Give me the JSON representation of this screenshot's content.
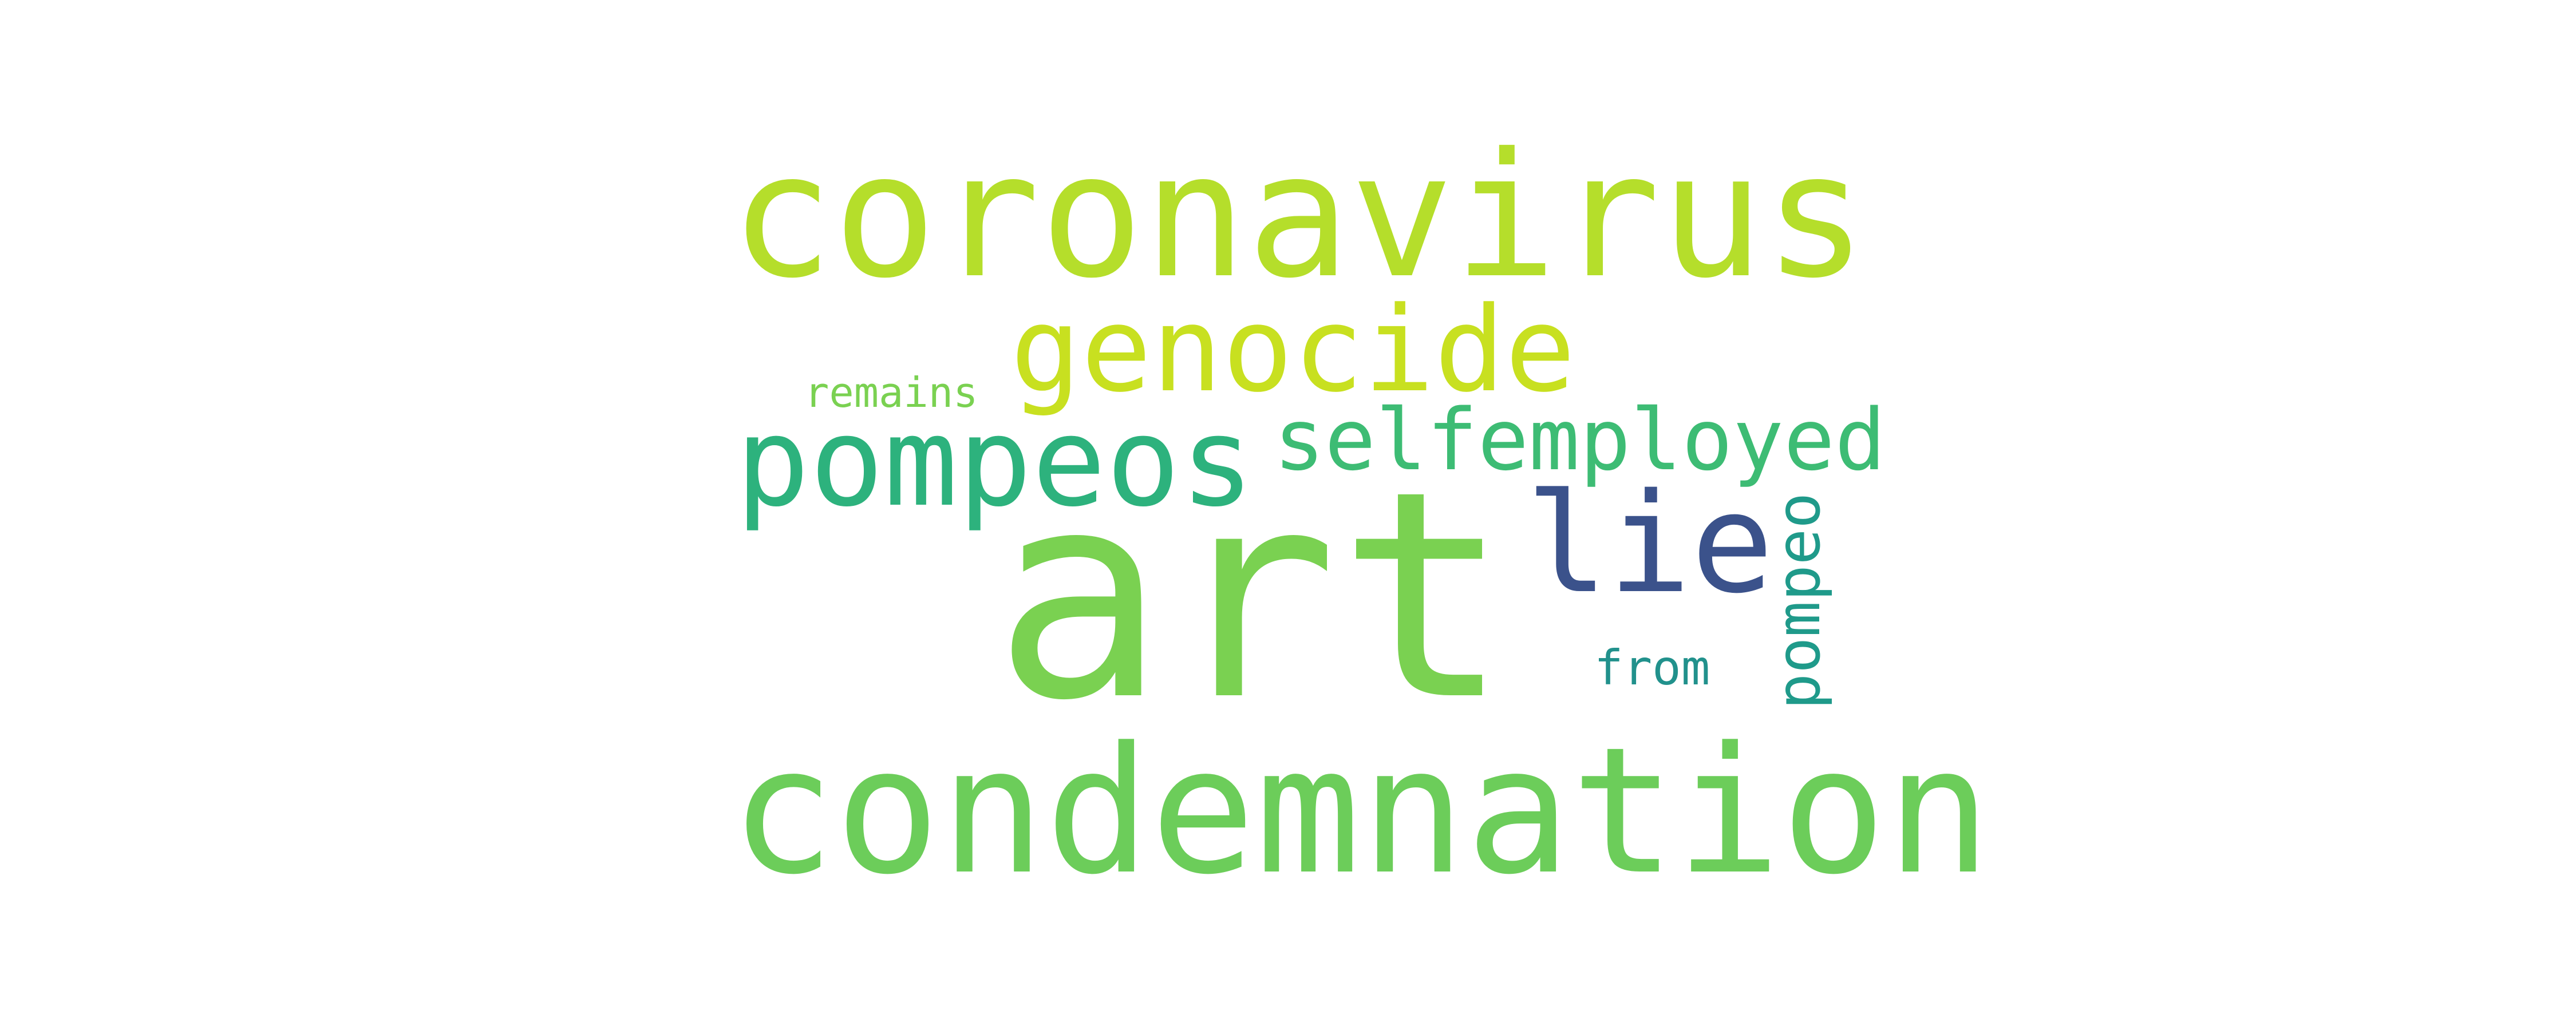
{
  "words": [
    {
      "text": "coronavirus",
      "color": "#b5de2b"
    },
    {
      "text": "genocide",
      "color": "#c8e020"
    },
    {
      "text": "remains",
      "color": "#7ad151"
    },
    {
      "text": "pompeos",
      "color": "#2db27d"
    },
    {
      "text": "selfemployed",
      "color": "#3dbc74"
    },
    {
      "text": "lie",
      "color": "#3b528b"
    },
    {
      "text": "art",
      "color": "#7ad151"
    },
    {
      "text": "from",
      "color": "#21918c"
    },
    {
      "text": "pompeo",
      "color": "#1f9a8a"
    },
    {
      "text": "condemnation",
      "color": "#6ccd5a"
    }
  ]
}
